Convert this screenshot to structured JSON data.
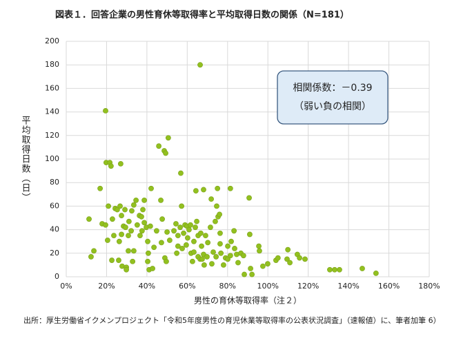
{
  "chart_data": {
    "type": "scatter",
    "title": "図表１．回答企業の男性育休等取得率と平均取得日数の関係（N=181）",
    "x_label": "男性の育休等取得率（注２）",
    "y_label": "平均取得日数（日）",
    "annotation": [
      "相関係数：－0.39",
      "（弱い負の相関）"
    ],
    "source": "出所：厚生労働省イクメンプロジェクト「令和5年度男性の育児休業等取得率の公表状況調査」（速報値）に、筆者加筆 6）",
    "color": "#92c020",
    "grid": true,
    "xlim": [
      0,
      180
    ],
    "ylim": [
      0,
      200
    ],
    "xticks": [
      {
        "value": 0,
        "label": "0%"
      },
      {
        "value": 20,
        "label": "20%"
      },
      {
        "value": 40,
        "label": "40%"
      },
      {
        "value": 60,
        "label": "60%"
      },
      {
        "value": 80,
        "label": "80%"
      },
      {
        "value": 100,
        "label": "100%"
      },
      {
        "value": 120,
        "label": "120%"
      },
      {
        "value": 140,
        "label": "140%"
      },
      {
        "value": 160,
        "label": "160%"
      },
      {
        "value": 180,
        "label": "180%"
      }
    ],
    "yticks": [
      0,
      20,
      40,
      60,
      80,
      100,
      120,
      140,
      160,
      180,
      200
    ],
    "x": [
      11.3,
      12.3,
      13.7,
      16.8,
      17.8,
      19.5,
      19.5,
      19.8,
      21.6,
      22.2,
      20.9,
      20.5,
      22.6,
      22.9,
      23.6,
      24.3,
      25.3,
      26,
      27,
      26.7,
      27.4,
      26.3,
      27.4,
      28.4,
      29.1,
      29.4,
      27.7,
      29.8,
      29.8,
      30.8,
      30.8,
      32.2,
      32.5,
      31.1,
      32.9,
      33.5,
      33.5,
      34.6,
      35.2,
      36.3,
      36.6,
      37.3,
      37.6,
      38.7,
      38,
      38.7,
      39.7,
      40.4,
      40.7,
      40.4,
      41.1,
      42.1,
      41.7,
      42.8,
      43.5,
      44.8,
      45.9,
      47.2,
      47.6,
      46.9,
      48.6,
      49.3,
      48.9,
      50.6,
      49.6,
      50,
      51.3,
      53.4,
      54.4,
      54.8,
      55.4,
      55.4,
      56.5,
      56.8,
      57.2,
      57.5,
      58.2,
      58.9,
      59.5,
      59.9,
      60.2,
      60.9,
      61.6,
      61.9,
      62.6,
      63.3,
      63.3,
      64,
      64.3,
      64.7,
      65.4,
      65.4,
      66.4,
      66.4,
      66.7,
      67.1,
      67.4,
      68.1,
      68.1,
      68.4,
      69.1,
      69.8,
      70.2,
      71.5,
      71.9,
      72.2,
      72.9,
      73.9,
      74.3,
      74.6,
      75,
      75.3,
      76,
      76.3,
      76.3,
      76.7,
      78,
      79,
      80.1,
      80.1,
      81.4,
      81.4,
      81.8,
      83.2,
      83.5,
      84.5,
      85.2,
      86.6,
      87.9,
      88.3,
      90.7,
      91,
      91.4,
      92.1,
      95.5,
      95.8,
      97.5,
      99.9,
      104,
      105,
      109.9,
      109.5,
      110.9,
      114.6,
      115.7,
      118.4,
      130.7,
      133.1,
      135.5,
      146.8,
      153.6
    ],
    "values": [
      49,
      17,
      22,
      75,
      45,
      141,
      44,
      97,
      97,
      94,
      60,
      31,
      14,
      49,
      35,
      58,
      57,
      14,
      96,
      60,
      36,
      30,
      52,
      43,
      57,
      42,
      9,
      8,
      6,
      22,
      35,
      39,
      56,
      47,
      13,
      22,
      61,
      65,
      44,
      52,
      35,
      51,
      39,
      65,
      57,
      46,
      42,
      30,
      20,
      13,
      6,
      75,
      43,
      7,
      25,
      39,
      111,
      29,
      49,
      65,
      107,
      105,
      16,
      118,
      13,
      38,
      31,
      39,
      45,
      20,
      26,
      35,
      42,
      88,
      60,
      24,
      37,
      44,
      27,
      43,
      33,
      40,
      44,
      20,
      13,
      30,
      21,
      42,
      73,
      47,
      17,
      35,
      180,
      15,
      37,
      26,
      15,
      19,
      74,
      10,
      35,
      17,
      29,
      42,
      66,
      11,
      21,
      47,
      17,
      60,
      75,
      51,
      53,
      37,
      28,
      20,
      10,
      16,
      15,
      26,
      75,
      18,
      30,
      39,
      24,
      19,
      12,
      20,
      18,
      2,
      67,
      36,
      7,
      2,
      26,
      22,
      9,
      11,
      14,
      16,
      23,
      15,
      12,
      19,
      16,
      15,
      6,
      6,
      6,
      7,
      3
    ]
  }
}
